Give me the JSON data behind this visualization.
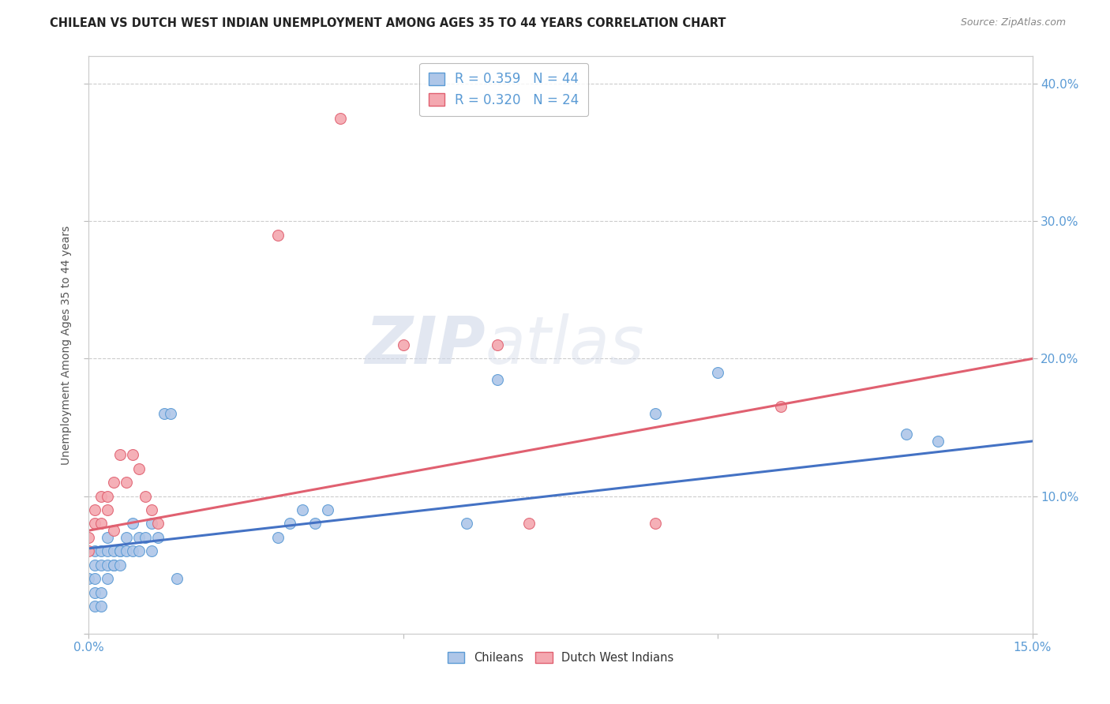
{
  "title": "CHILEAN VS DUTCH WEST INDIAN UNEMPLOYMENT AMONG AGES 35 TO 44 YEARS CORRELATION CHART",
  "source": "Source: ZipAtlas.com",
  "ylabel": "Unemployment Among Ages 35 to 44 years",
  "xlim": [
    0.0,
    0.15
  ],
  "ylim": [
    0.0,
    0.42
  ],
  "xticks": [
    0.0,
    0.05,
    0.1,
    0.15
  ],
  "xtick_labels": [
    "0.0%",
    "",
    "",
    "15.0%"
  ],
  "yticks": [
    0.0,
    0.1,
    0.2,
    0.3,
    0.4
  ],
  "ytick_labels": [
    "",
    "10.0%",
    "20.0%",
    "30.0%",
    "40.0%"
  ],
  "chilean_color": "#aec6e8",
  "dutch_color": "#f4a8b0",
  "chilean_edge": "#5b9bd5",
  "dutch_edge": "#e06070",
  "line_chilean": "#4472c4",
  "line_dutch": "#e06070",
  "legend_r_chilean": "R = 0.359",
  "legend_n_chilean": "N = 44",
  "legend_r_dutch": "R = 0.320",
  "legend_n_dutch": "N = 24",
  "watermark_zip": "ZIP",
  "watermark_atlas": "atlas",
  "bg_color": "#ffffff",
  "grid_color": "#cccccc",
  "title_color": "#222222",
  "axis_label_color": "#555555",
  "tick_label_color": "#5b9bd5",
  "figsize": [
    14.06,
    8.92
  ],
  "dpi": 100,
  "chilean_x": [
    0.0,
    0.001,
    0.001,
    0.001,
    0.001,
    0.001,
    0.002,
    0.002,
    0.002,
    0.002,
    0.003,
    0.003,
    0.003,
    0.003,
    0.004,
    0.004,
    0.004,
    0.005,
    0.005,
    0.005,
    0.006,
    0.006,
    0.007,
    0.007,
    0.008,
    0.008,
    0.009,
    0.01,
    0.01,
    0.011,
    0.012,
    0.013,
    0.014,
    0.03,
    0.032,
    0.034,
    0.036,
    0.038,
    0.06,
    0.065,
    0.09,
    0.1,
    0.13,
    0.135
  ],
  "chilean_y": [
    0.04,
    0.02,
    0.03,
    0.04,
    0.05,
    0.06,
    0.05,
    0.06,
    0.03,
    0.02,
    0.05,
    0.06,
    0.07,
    0.04,
    0.05,
    0.06,
    0.05,
    0.06,
    0.05,
    0.06,
    0.07,
    0.06,
    0.08,
    0.06,
    0.06,
    0.07,
    0.07,
    0.06,
    0.08,
    0.07,
    0.16,
    0.16,
    0.04,
    0.07,
    0.08,
    0.09,
    0.08,
    0.09,
    0.08,
    0.185,
    0.16,
    0.19,
    0.145,
    0.14
  ],
  "dutch_x": [
    0.0,
    0.0,
    0.001,
    0.001,
    0.002,
    0.002,
    0.003,
    0.003,
    0.004,
    0.004,
    0.005,
    0.006,
    0.007,
    0.008,
    0.009,
    0.01,
    0.011,
    0.03,
    0.04,
    0.05,
    0.065,
    0.07,
    0.09,
    0.11
  ],
  "dutch_y": [
    0.06,
    0.07,
    0.08,
    0.09,
    0.08,
    0.1,
    0.09,
    0.1,
    0.075,
    0.11,
    0.13,
    0.11,
    0.13,
    0.12,
    0.1,
    0.09,
    0.08,
    0.29,
    0.375,
    0.21,
    0.21,
    0.08,
    0.08,
    0.165
  ]
}
